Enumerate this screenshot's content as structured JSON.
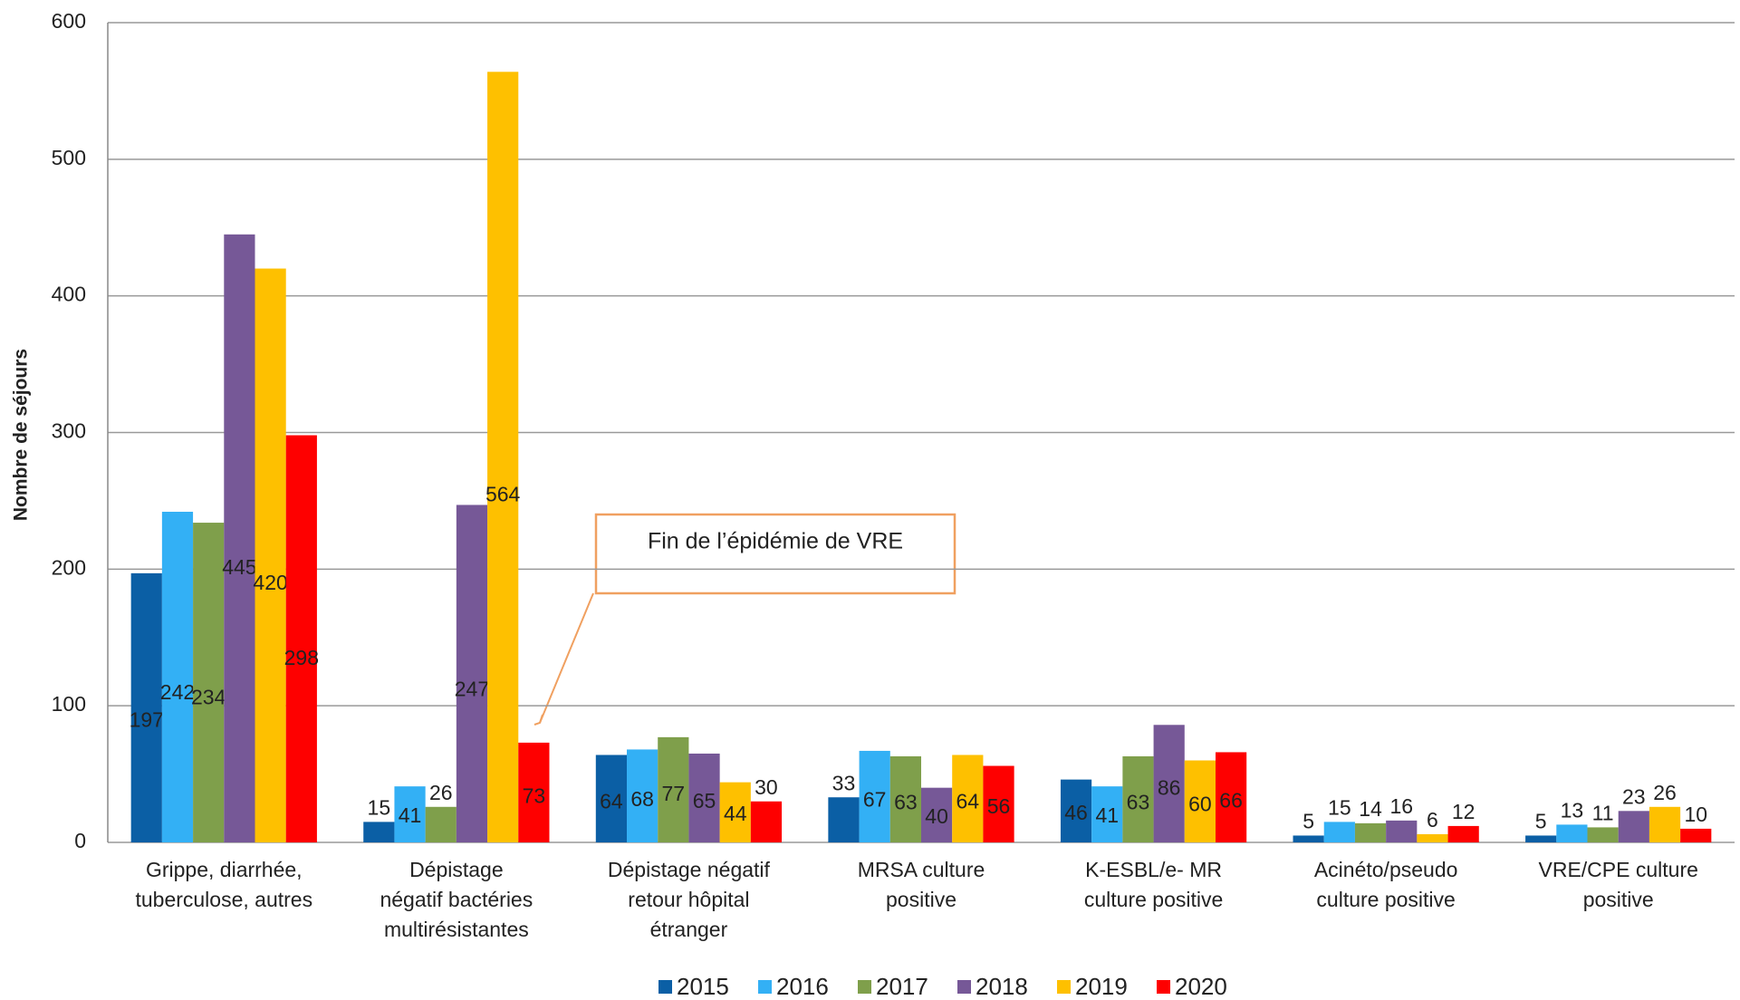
{
  "chart_data": {
    "type": "bar",
    "y_label": "Nombre de séjours",
    "categories": [
      "Grippe, diarrhée,\ntuberculose, autres",
      "Dépistage\nnégatif  bactéries\nmultirésistantes",
      "Dépistage négatif\nretour hôpital\nétranger",
      "MRSA culture\npositive",
      "K-ESBL/e- MR\nculture positive",
      "Acinéto/pseudo\nculture positive",
      "VRE/CPE culture\npositive"
    ],
    "series": [
      {
        "name": "2015",
        "color": "#0b5fa5",
        "values": [
          197,
          15,
          64,
          33,
          46,
          5,
          5
        ]
      },
      {
        "name": "2016",
        "color": "#33b0f5",
        "values": [
          242,
          41,
          68,
          67,
          41,
          15,
          13
        ]
      },
      {
        "name": "2017",
        "color": "#7f9f4b",
        "values": [
          234,
          26,
          77,
          63,
          63,
          14,
          11
        ]
      },
      {
        "name": "2018",
        "color": "#765897",
        "values": [
          445,
          247,
          65,
          40,
          86,
          16,
          23
        ]
      },
      {
        "name": "2019",
        "color": "#fec000",
        "values": [
          420,
          564,
          44,
          64,
          60,
          6,
          26
        ]
      },
      {
        "name": "2020",
        "color": "#fe0000",
        "values": [
          298,
          73,
          30,
          56,
          66,
          12,
          10
        ]
      }
    ],
    "ylim": [
      0,
      600
    ],
    "yticks": [
      0,
      100,
      200,
      300,
      400,
      500,
      600
    ],
    "grid": true,
    "annotation": "Fin de l’épidémie  de VRE"
  }
}
